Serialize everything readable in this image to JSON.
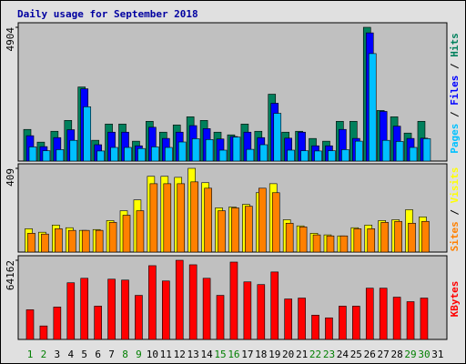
{
  "title": "Daily usage for September 2018",
  "title_color": "#0000a0",
  "categories": [
    "1",
    "2",
    "3",
    "4",
    "5",
    "6",
    "7",
    "8",
    "9",
    "10",
    "11",
    "12",
    "13",
    "14",
    "15",
    "16",
    "17",
    "18",
    "19",
    "20",
    "21",
    "22",
    "23",
    "24",
    "25",
    "26",
    "27",
    "28",
    "29",
    "30",
    "31"
  ],
  "category_colors": [
    "#007f00",
    "#007f00",
    "#000000",
    "#000000",
    "#000000",
    "#000000",
    "#000000",
    "#007f00",
    "#007f00",
    "#000000",
    "#000000",
    "#000000",
    "#000000",
    "#000000",
    "#007f00",
    "#007f00",
    "#000000",
    "#000000",
    "#000000",
    "#000000",
    "#000000",
    "#007f00",
    "#007f00",
    "#000000",
    "#000000",
    "#000000",
    "#000000",
    "#000000",
    "#007f00",
    "#007f00",
    "#000000"
  ],
  "legend_separator": " / ",
  "chart_data": [
    {
      "type": "bar",
      "ylim": [
        0,
        4904
      ],
      "yticks": [
        4904
      ],
      "series": [
        {
          "name": "Hits",
          "color": "#00805c",
          "values": [
            1160,
            695,
            1093,
            1491,
            2717,
            762,
            1358,
            1358,
            729,
            1458,
            1060,
            1325,
            1624,
            1491,
            1060,
            961,
            1358,
            1093,
            2452,
            1060,
            1093,
            828,
            729,
            1458,
            1458,
            4904,
            1855,
            1624,
            1027,
            1458,
            0
          ]
        },
        {
          "name": "Files",
          "color": "#0000ff",
          "values": [
            930,
            530,
            860,
            1150,
            2650,
            600,
            1060,
            1060,
            560,
            1240,
            830,
            1060,
            1300,
            1190,
            810,
            900,
            1060,
            860,
            2120,
            840,
            1060,
            560,
            560,
            1160,
            830,
            4700,
            1820,
            1280,
            830,
            840,
            0
          ]
        },
        {
          "name": "Pages",
          "color": "#00c0ff",
          "values": [
            520,
            380,
            420,
            760,
            1990,
            370,
            500,
            500,
            460,
            520,
            500,
            700,
            820,
            790,
            400,
            880,
            430,
            600,
            1750,
            400,
            380,
            370,
            380,
            420,
            730,
            3940,
            760,
            720,
            500,
            820,
            0
          ]
        }
      ]
    },
    {
      "type": "bar",
      "ylim": [
        0,
        409
      ],
      "yticks": [
        409
      ],
      "series": [
        {
          "name": "Visits",
          "color": "#ffff00",
          "values": [
            114,
            97,
            132,
            119,
            106,
            110,
            154,
            202,
            255,
            370,
            370,
            365,
            409,
            339,
            216,
            220,
            233,
            290,
            334,
            158,
            128,
            92,
            84,
            79,
            119,
            132,
            154,
            158,
            207,
            172,
            0
          ]
        },
        {
          "name": "Sites",
          "color": "#ff8000",
          "values": [
            92,
            88,
            114,
            106,
            106,
            106,
            145,
            180,
            202,
            334,
            334,
            334,
            343,
            312,
            202,
            216,
            224,
            312,
            290,
            141,
            123,
            84,
            79,
            79,
            114,
            114,
            145,
            150,
            141,
            150,
            0
          ]
        }
      ]
    },
    {
      "type": "bar",
      "ylim": [
        0,
        64162
      ],
      "yticks": [
        64162
      ],
      "series": [
        {
          "name": "KBytes",
          "color": "#ff0000",
          "values": [
            24060,
            10935,
            26244,
            45927,
            49572,
            26973,
            48843,
            48114,
            35721,
            59778,
            47385,
            64162,
            60507,
            49572,
            35721,
            62694,
            46656,
            44469,
            54675,
            32805,
            33534,
            19683,
            17496,
            26973,
            26973,
            41553,
            41553,
            34263,
            30618,
            33534,
            0
          ]
        }
      ]
    }
  ]
}
